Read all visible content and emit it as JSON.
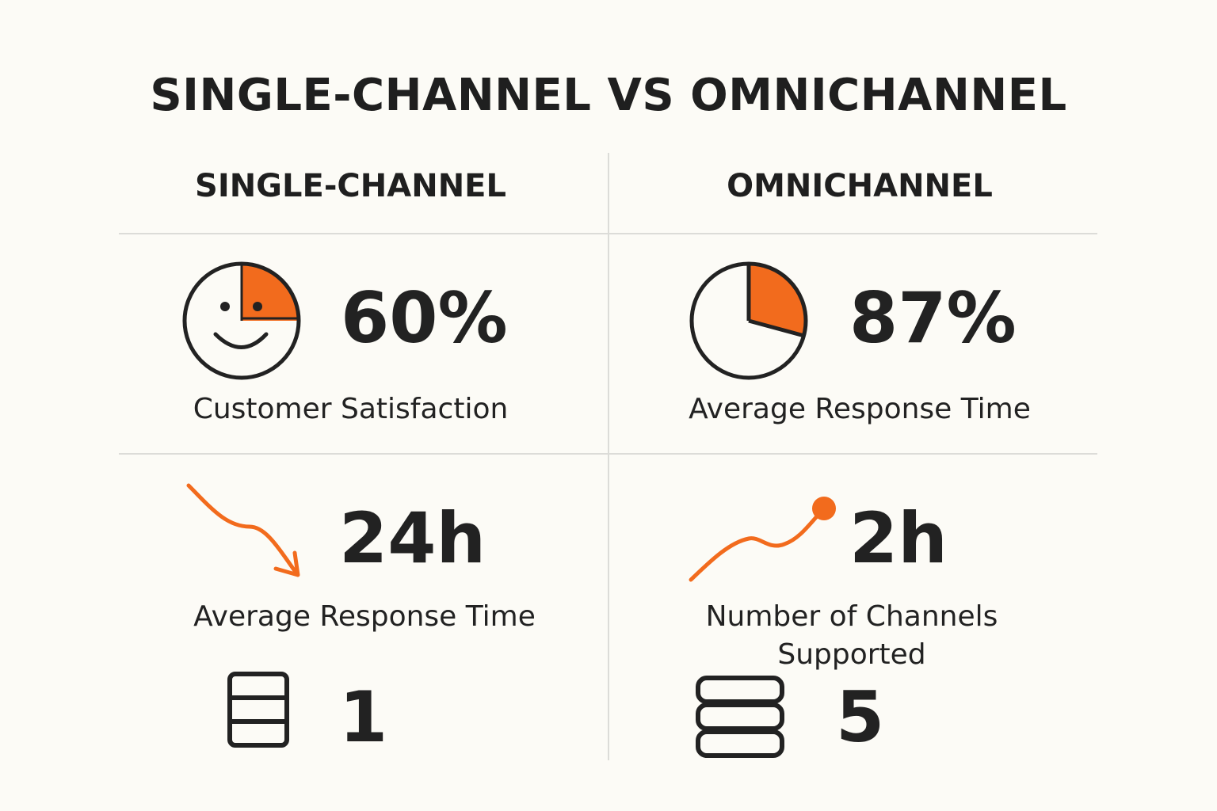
{
  "title": "SINGLE-CHANNEL VS OMNICHANNEL",
  "columns": {
    "left": "SINGLE-CHANNEL",
    "right": "OMNICHANNEL"
  },
  "left": {
    "metric1": {
      "value": "60%",
      "label": "Customer Satisfaction",
      "icon": "smiley-pie-icon"
    },
    "metric2": {
      "value": "24h",
      "label": "Average Response Time",
      "icon": "trend-down-arrow-icon"
    },
    "metric3": {
      "value": "1",
      "icon": "stack-icon"
    }
  },
  "right": {
    "metric1": {
      "value": "87%",
      "label": "Average Response Time",
      "icon": "pie-chart-icon"
    },
    "metric2": {
      "value": "2h",
      "label": "Number of Channels Supported",
      "icon": "trend-up-line-icon"
    },
    "metric3": {
      "value": "5",
      "icon": "server-stack-icon"
    }
  },
  "colors": {
    "accent": "#f26b1d",
    "text": "#222222",
    "background": "#fcfbf6",
    "divider": "#dcdcd8"
  }
}
